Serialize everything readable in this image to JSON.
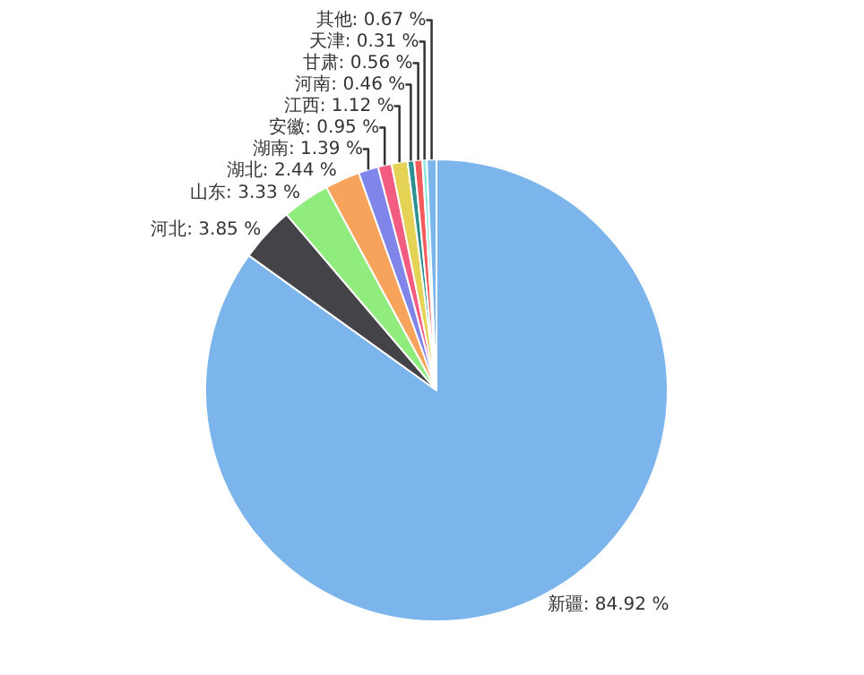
{
  "chart_data": {
    "type": "pie",
    "categories": [
      "新疆",
      "河北",
      "山东",
      "湖北",
      "湖南",
      "安徽",
      "江西",
      "河南",
      "甘肃",
      "天津",
      "其他"
    ],
    "values": [
      84.92,
      3.85,
      3.33,
      2.44,
      1.39,
      0.95,
      1.12,
      0.46,
      0.56,
      0.31,
      0.67
    ],
    "value_labels": [
      "84.92 %",
      "3.85 %",
      "3.33 %",
      "2.44 %",
      "1.39 %",
      "0.95 %",
      "1.12 %",
      "0.46 %",
      "0.56 %",
      "0.31 %",
      "0.67 %"
    ],
    "colors": [
      "#7cb5ec",
      "#434348",
      "#90ed7d",
      "#f7a35c",
      "#8085e9",
      "#f15c80",
      "#e4d354",
      "#2b908f",
      "#f45b5b",
      "#91e8e1",
      "#7cb5ec"
    ],
    "legend": false
  }
}
